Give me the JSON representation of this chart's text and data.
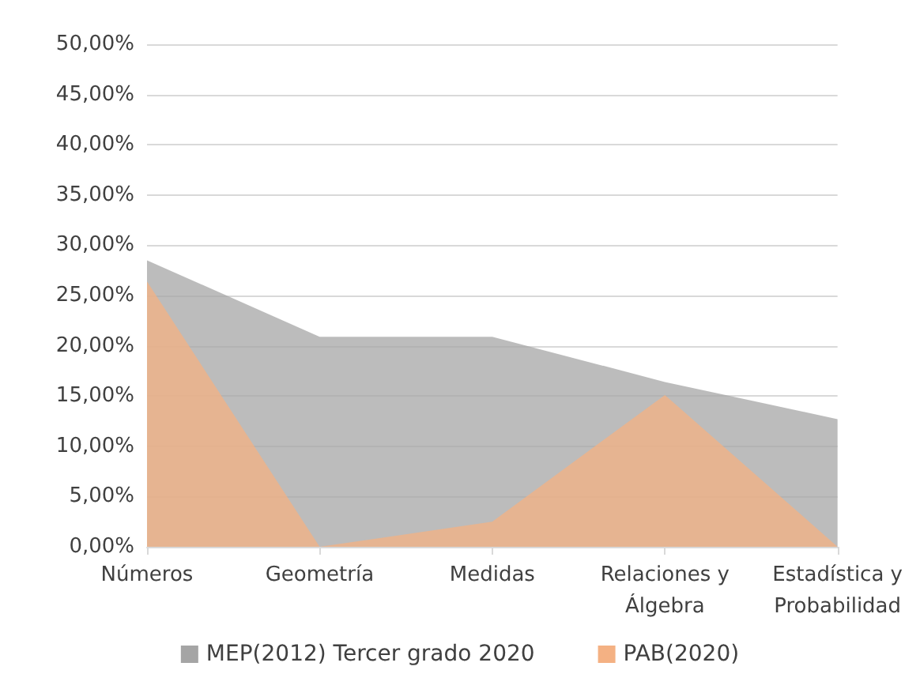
{
  "chart_data": {
    "type": "area",
    "categories": [
      "Números",
      "Geometría",
      "Medidas",
      "Relaciones y\nÁlgebra",
      "Estadística y\nProbabilidad"
    ],
    "series": [
      {
        "name": "MEP(2012) Tercer grado 2020",
        "color": "#a5a5a5",
        "values": [
          28.5,
          20.9,
          20.9,
          16.4,
          12.7
        ]
      },
      {
        "name": "PAB(2020)",
        "color": "#f4b183",
        "values": [
          26.4,
          0,
          2.5,
          15.1,
          0
        ]
      }
    ],
    "ylim": [
      0,
      50
    ],
    "yticks": [
      {
        "value": 0,
        "label": "0,00%"
      },
      {
        "value": 5,
        "label": "5,00%"
      },
      {
        "value": 10,
        "label": "10,00%"
      },
      {
        "value": 15,
        "label": "15,00%"
      },
      {
        "value": 20,
        "label": "20,00%"
      },
      {
        "value": 25,
        "label": "25,00%"
      },
      {
        "value": 30,
        "label": "30,00%"
      },
      {
        "value": 35,
        "label": "35,00%"
      },
      {
        "value": 40,
        "label": "40,00%"
      },
      {
        "value": 45,
        "label": "45,00%"
      },
      {
        "value": 50,
        "label": "50,00%"
      }
    ],
    "grid": "y",
    "legend": "bottom"
  }
}
